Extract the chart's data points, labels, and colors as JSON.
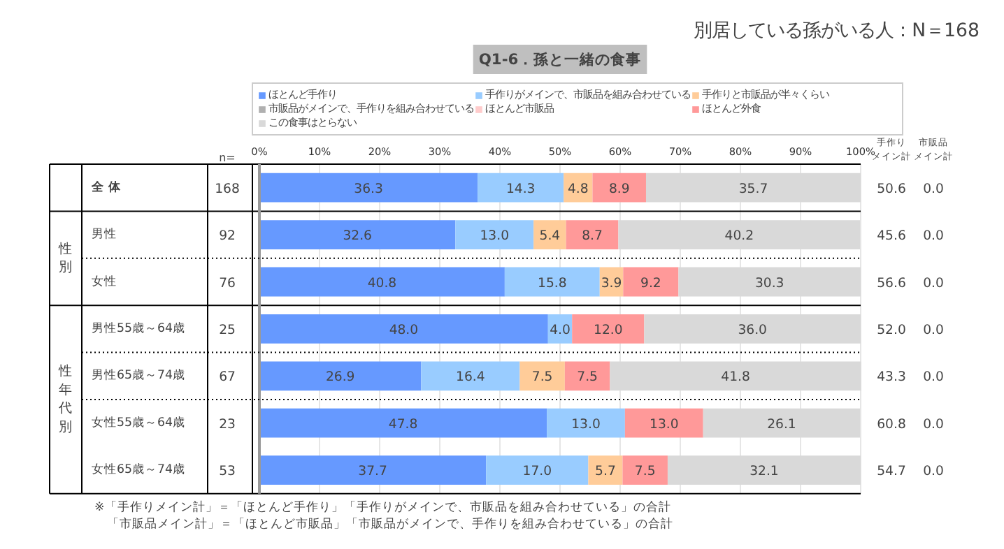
{
  "chart_data": {
    "type": "bar",
    "orientation": "horizontal",
    "stacked": true,
    "title": "Q1-6．孫と一緒の食事",
    "categories": [
      "全 体",
      "男性",
      "女性",
      "男性55歳～64歳",
      "男性65歳～74歳",
      "女性55歳～64歳",
      "女性65歳～74歳"
    ],
    "series": [
      {
        "name": "ほとんど手作り",
        "color": "#6699ff",
        "values": [
          36.3,
          32.6,
          40.8,
          48.0,
          26.9,
          47.8,
          37.7
        ],
        "value_labels": [
          "36.3",
          "32.6",
          "40.8",
          "48.0",
          "26.9",
          "47.8",
          "37.7"
        ]
      },
      {
        "name": "手作りがメインで、市販品を組み合わせている",
        "color": "#99ccff",
        "values": [
          14.3,
          13.0,
          15.8,
          4.0,
          16.4,
          13.0,
          17.0
        ],
        "value_labels": [
          "14.3",
          "13.0",
          "15.8",
          "4.0",
          "16.4",
          "13.0",
          "17.0"
        ]
      },
      {
        "name": "手作りと市販品が半々くらい",
        "color": "#ffcc99",
        "values": [
          4.8,
          5.4,
          3.9,
          0,
          7.5,
          0,
          5.7
        ],
        "value_labels": [
          "4.8",
          "5.4",
          "3.9",
          null,
          "7.5",
          null,
          "5.7"
        ]
      },
      {
        "name": "市販品がメインで、手作りを組み合わせている",
        "color": "#b0b0b0",
        "values": [
          0,
          0,
          0,
          0,
          0,
          0,
          0
        ],
        "value_labels": [
          null,
          null,
          null,
          null,
          null,
          null,
          null
        ]
      },
      {
        "name": "ほとんど市販品",
        "color": "#ffcccc",
        "values": [
          0,
          0,
          0,
          0,
          0,
          0,
          0
        ],
        "value_labels": [
          null,
          null,
          null,
          null,
          null,
          null,
          null
        ]
      },
      {
        "name": "ほとんど外食",
        "color": "#ff9999",
        "values": [
          8.9,
          8.7,
          9.2,
          12.0,
          7.5,
          13.0,
          7.5
        ],
        "value_labels": [
          "8.9",
          "8.7",
          "9.2",
          "12.0",
          "7.5",
          "13.0",
          "7.5"
        ]
      },
      {
        "name": "この食事はとらない",
        "color": "#d9d9d9",
        "values": [
          35.7,
          40.2,
          30.3,
          36.0,
          41.8,
          26.1,
          32.1
        ],
        "value_labels": [
          "35.7",
          "40.2",
          "30.3",
          "36.0",
          "41.8",
          "26.1",
          "32.1"
        ]
      }
    ],
    "xlim": [
      0,
      100
    ],
    "xticks": [
      {
        "value": 0,
        "label": "0%"
      },
      {
        "value": 10,
        "label": "10%"
      },
      {
        "value": 20,
        "label": "20%"
      },
      {
        "value": 30,
        "label": "30%"
      },
      {
        "value": 40,
        "label": "40%"
      },
      {
        "value": 50,
        "label": "50%"
      },
      {
        "value": 60,
        "label": "60%"
      },
      {
        "value": 70,
        "label": "70%"
      },
      {
        "value": 80,
        "label": "80%"
      },
      {
        "value": 90,
        "label": "90%"
      },
      {
        "value": 100,
        "label": "100%"
      }
    ],
    "legend": "top",
    "grid": "x",
    "annotations": [
      "別居している孫がいる人：N＝168",
      "n=",
      "168",
      "92",
      "76",
      "25",
      "67",
      "23",
      "53",
      "手作りメイン計",
      "市販品メイン計",
      "50.6",
      "45.6",
      "56.6",
      "52.0",
      "43.3",
      "60.8",
      "54.7",
      "0.0",
      "0.0",
      "0.0",
      "0.0",
      "0.0",
      "0.0",
      "0.0",
      "性別",
      "性年代別",
      "※「手作りメイン計」＝「ほとんど手作り」「手作りがメインで、市販品を組み合わせている」の合計",
      "　「市販品メイン計」＝「ほとんど市販品」「市販品がメインで、手作りを組み合わせている」の合計"
    ]
  }
}
